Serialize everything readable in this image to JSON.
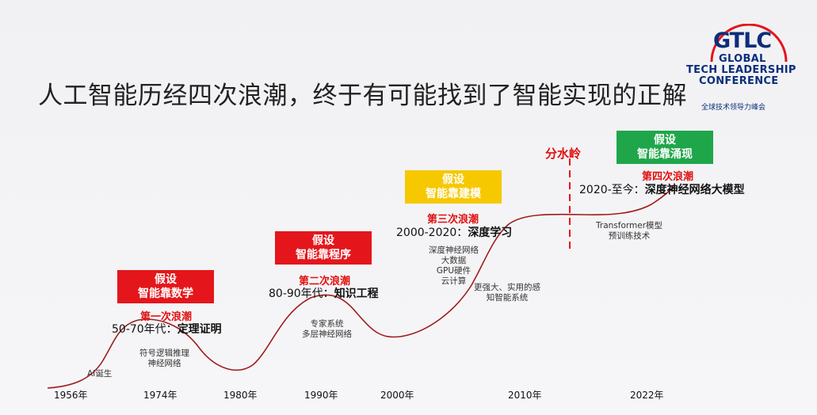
{
  "title": "人工智能历经四次浪潮，终于有可能找到了智能实现的正解",
  "logo": {
    "acronym": "GTLC",
    "line1": "GLOBAL",
    "line2": "TECH LEADERSHIP",
    "line3": "CONFERENCE",
    "cn": "全球技术领导力峰会"
  },
  "watershed": "分水岭",
  "waves": [
    {
      "hyp1": "假设",
      "hyp2": "智能靠数学",
      "label": "第一次浪潮",
      "period": "50-70年代：",
      "topic": "定理证明",
      "notes": [
        "符号逻辑推理",
        "神经网络"
      ]
    },
    {
      "hyp1": "假设",
      "hyp2": "智能靠程序",
      "label": "第二次浪潮",
      "period": "80-90年代：",
      "topic": "知识工程",
      "notes": [
        "专家系统",
        "多层神经网络"
      ]
    },
    {
      "hyp1": "假设",
      "hyp2": "智能靠建模",
      "label": "第三次浪潮",
      "period": "2000-2020：",
      "topic": "深度学习",
      "notes": [
        "深度神经网络",
        "大数据",
        "GPU硬件",
        "云计算"
      ]
    },
    {
      "hyp1": "假设",
      "hyp2": "智能靠涌现",
      "label": "第四次浪潮",
      "period": "2020-至今：",
      "topic": "深度神经网络大模型",
      "notes": [
        "Transformer模型",
        "预训练技术"
      ]
    }
  ],
  "extra_notes": {
    "ai_birth": "AI诞生",
    "practical": [
      "更强大、实用的感",
      "知智能系统"
    ]
  },
  "years": [
    "1956年",
    "1974年",
    "1980年",
    "1990年",
    "2000年",
    "2010年",
    "2022年"
  ],
  "colors": {
    "red": "#e4161b",
    "yellow": "#f5c800",
    "green": "#1fa64a",
    "curve": "#a01c1c",
    "accent": "#e01010"
  }
}
